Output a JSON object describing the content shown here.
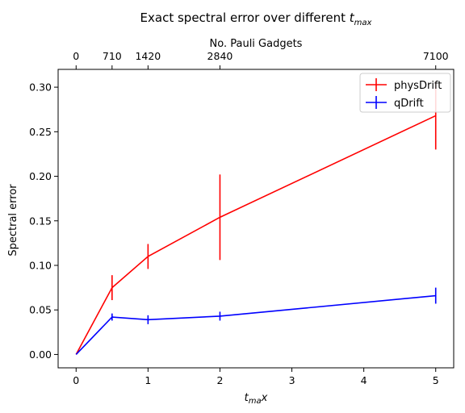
{
  "chart_data": {
    "type": "line",
    "title_main": "Exact spectral error over different ",
    "title_var": "t",
    "title_sub": "max",
    "xlabel_var": "t",
    "xlabel_sub": "ma",
    "xlabel_suffix": "x",
    "ylabel": "Spectral error",
    "top_xlabel": "No. Pauli Gadgets",
    "xlim": [
      -0.25,
      5.25
    ],
    "ylim": [
      -0.015,
      0.32
    ],
    "xticks": [
      0,
      1,
      2,
      3,
      4,
      5
    ],
    "yticks": [
      0.0,
      0.05,
      0.1,
      0.15,
      0.2,
      0.25,
      0.3
    ],
    "ytick_labels": [
      "0.00",
      "0.05",
      "0.10",
      "0.15",
      "0.20",
      "0.25",
      "0.30"
    ],
    "top_ticks": [
      {
        "x": 0,
        "label": "0"
      },
      {
        "x": 0.5,
        "label": "710"
      },
      {
        "x": 1,
        "label": "1420"
      },
      {
        "x": 2,
        "label": "2840"
      },
      {
        "x": 5,
        "label": "7100"
      }
    ],
    "legend_position": "top-right",
    "series": [
      {
        "name": "physDrift",
        "color": "#ff0000",
        "x": [
          0,
          0.5,
          1,
          2,
          5
        ],
        "y": [
          0.0,
          0.075,
          0.11,
          0.154,
          0.268
        ],
        "yerr": [
          0.0,
          0.014,
          0.014,
          0.048,
          0.038
        ]
      },
      {
        "name": "qDrift",
        "color": "#0000ff",
        "x": [
          0,
          0.5,
          1,
          2,
          5
        ],
        "y": [
          0.0,
          0.042,
          0.039,
          0.043,
          0.066
        ],
        "yerr": [
          0.0,
          0.004,
          0.005,
          0.005,
          0.009
        ]
      }
    ]
  }
}
